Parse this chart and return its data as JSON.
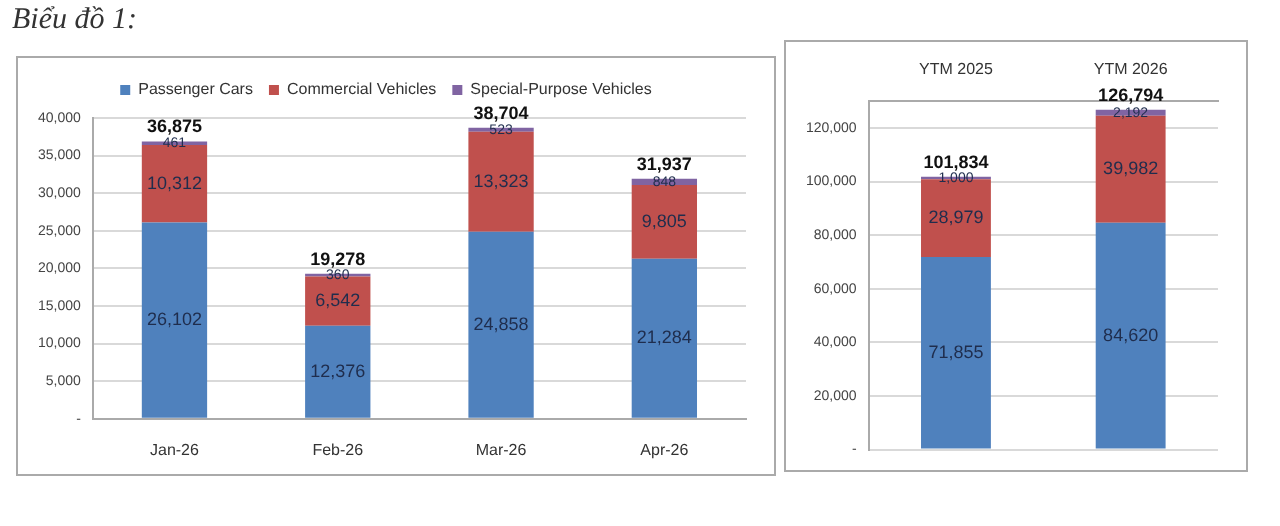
{
  "chart_data": [
    {
      "type": "bar",
      "title": "Biểu đồ 1:",
      "categories": [
        "Jan-26",
        "Feb-26",
        "Mar-26",
        "Apr-26"
      ],
      "stacked": true,
      "series": [
        {
          "name": "Passenger Cars",
          "color": "#4f81bd",
          "values": [
            26102,
            12376,
            24858,
            21284
          ],
          "value_labels": [
            "26,102",
            "12,376",
            "24,858",
            "21,284"
          ]
        },
        {
          "name": "Commercial Vehicles",
          "color": "#c0504d",
          "values": [
            10312,
            6542,
            13323,
            9805
          ],
          "value_labels": [
            "10,312",
            "6,542",
            "13,323",
            "9,805"
          ]
        },
        {
          "name": "Special-Purpose Vehicles",
          "color": "#8064a2",
          "values": [
            461,
            360,
            523,
            848
          ],
          "value_labels": [
            "461",
            "360",
            "523",
            "848"
          ]
        }
      ],
      "totals": [
        "36,875",
        "19,278",
        "38,704",
        "31,937"
      ],
      "ylim": [
        0,
        40000
      ],
      "yticks": [
        {
          "value": 0,
          "label": "-"
        },
        {
          "value": 5000,
          "label": "5,000"
        },
        {
          "value": 10000,
          "label": "10,000"
        },
        {
          "value": 15000,
          "label": "15,000"
        },
        {
          "value": 20000,
          "label": "20,000"
        },
        {
          "value": 25000,
          "label": "25,000"
        },
        {
          "value": 30000,
          "label": "30,000"
        },
        {
          "value": 35000,
          "label": "35,000"
        },
        {
          "value": 40000,
          "label": "40,000"
        }
      ],
      "grid": "y",
      "legend": "top"
    },
    {
      "type": "bar",
      "categories": [
        "YTM 2025",
        "YTM 2026"
      ],
      "stacked": true,
      "series": [
        {
          "color": "#4f81bd",
          "values": [
            71855,
            84620
          ],
          "value_labels": [
            "71,855",
            "84,620"
          ]
        },
        {
          "color": "#c0504d",
          "values": [
            28979,
            39982
          ],
          "value_labels": [
            "28,979",
            "39,982"
          ]
        },
        {
          "color": "#8064a2",
          "values": [
            1000,
            2192
          ],
          "value_labels": [
            "1,000",
            "2,192"
          ]
        }
      ],
      "totals": [
        "101,834",
        "126,794"
      ],
      "ylim": [
        0,
        130000
      ],
      "yticks": [
        {
          "value": 0,
          "label": "-"
        },
        {
          "value": 20000,
          "label": "20,000"
        },
        {
          "value": 40000,
          "label": "40,000"
        },
        {
          "value": 60000,
          "label": "60,000"
        },
        {
          "value": 80000,
          "label": "80,000"
        },
        {
          "value": 100000,
          "label": "100,000"
        },
        {
          "value": 120000,
          "label": "120,000"
        }
      ],
      "grid": "y"
    }
  ]
}
